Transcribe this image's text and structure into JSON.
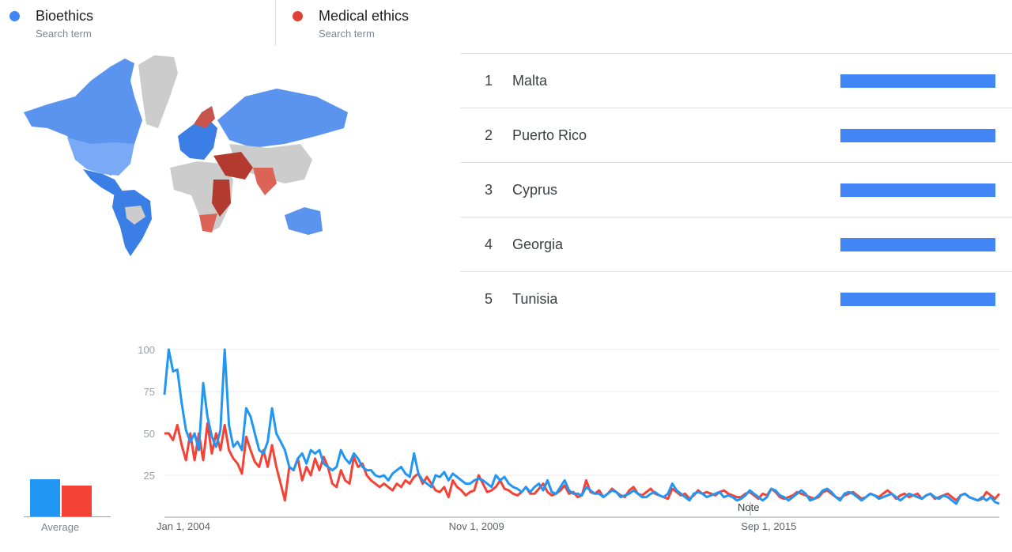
{
  "legend": [
    {
      "name": "Bioethics",
      "sub": "Search term",
      "color": "#4285f4"
    },
    {
      "name": "Medical ethics",
      "sub": "Search term",
      "color": "#db4437"
    }
  ],
  "ranking": [
    {
      "rank": "1",
      "country": "Malta",
      "value": 100
    },
    {
      "rank": "2",
      "country": "Puerto Rico",
      "value": 100
    },
    {
      "rank": "3",
      "country": "Cyprus",
      "value": 100
    },
    {
      "rank": "4",
      "country": "Georgia",
      "value": 100
    },
    {
      "rank": "5",
      "country": "Tunisia",
      "value": 100
    }
  ],
  "average": {
    "label": "Average",
    "values": [
      {
        "series": "Bioethics",
        "value": 24
      },
      {
        "series": "Medical ethics",
        "value": 20
      }
    ]
  },
  "note_label": "Note",
  "chart_data": {
    "type": "line",
    "x_tick_labels": [
      "Jan 1, 2004",
      "Nov 1, 2009",
      "Sep 1, 2015"
    ],
    "y_ticks": [
      25,
      50,
      75,
      100
    ],
    "ylim": [
      0,
      100
    ],
    "x_range": [
      "2004-01",
      "2020-09"
    ],
    "grid": true,
    "colors": [
      "#2196f3",
      "#f44336"
    ],
    "series": [
      {
        "name": "Bioethics",
        "values": [
          73,
          100,
          87,
          88,
          68,
          52,
          45,
          50,
          40,
          80,
          60,
          48,
          42,
          52,
          100,
          55,
          42,
          45,
          40,
          65,
          60,
          50,
          40,
          38,
          45,
          65,
          50,
          45,
          40,
          30,
          28,
          35,
          38,
          32,
          40,
          38,
          40,
          32,
          30,
          28,
          30,
          40,
          35,
          32,
          38,
          35,
          30,
          28,
          28,
          25,
          24,
          25,
          22,
          26,
          28,
          30,
          26,
          24,
          38,
          26,
          22,
          20,
          18,
          25,
          24,
          27,
          22,
          26,
          24,
          22,
          20,
          20,
          22,
          23,
          22,
          20,
          18,
          25,
          22,
          24,
          20,
          18,
          17,
          15,
          18,
          15,
          18,
          20,
          16,
          22,
          15,
          14,
          18,
          22,
          16,
          14,
          14,
          13,
          18,
          16,
          14,
          14,
          12,
          14,
          16,
          15,
          12,
          13,
          14,
          16,
          14,
          12,
          12,
          14,
          15,
          13,
          12,
          14,
          20,
          16,
          14,
          12,
          10,
          14,
          15,
          14,
          12,
          13,
          14,
          15,
          12,
          13,
          12,
          10,
          11,
          13,
          16,
          14,
          12,
          10,
          12,
          17,
          16,
          13,
          12,
          10,
          12,
          14,
          16,
          14,
          10,
          11,
          13,
          16,
          17,
          15,
          12,
          10,
          14,
          15,
          14,
          12,
          10,
          12,
          14,
          13,
          11,
          12,
          13,
          14,
          12,
          10,
          12,
          14,
          13,
          12,
          11,
          13,
          14,
          12,
          11,
          13,
          12,
          10,
          8,
          13,
          14,
          12,
          11,
          10,
          12,
          10,
          12,
          9,
          8
        ]
      },
      {
        "name": "Medical ethics",
        "values": [
          50,
          50,
          46,
          55,
          43,
          34,
          50,
          34,
          50,
          34,
          56,
          38,
          50,
          40,
          55,
          40,
          35,
          32,
          26,
          48,
          40,
          33,
          30,
          40,
          30,
          43,
          30,
          20,
          10,
          30,
          28,
          35,
          22,
          30,
          25,
          35,
          28,
          36,
          30,
          20,
          18,
          28,
          22,
          20,
          36,
          30,
          32,
          25,
          22,
          20,
          18,
          20,
          18,
          16,
          20,
          18,
          22,
          20,
          24,
          26,
          20,
          24,
          20,
          16,
          15,
          18,
          12,
          22,
          18,
          16,
          13,
          15,
          16,
          25,
          20,
          15,
          16,
          18,
          22,
          17,
          16,
          14,
          13,
          15,
          18,
          14,
          14,
          17,
          20,
          15,
          13,
          14,
          16,
          19,
          14,
          15,
          12,
          13,
          22,
          15,
          14,
          16,
          12,
          14,
          17,
          15,
          13,
          12,
          16,
          18,
          14,
          13,
          15,
          17,
          14,
          13,
          12,
          11,
          17,
          15,
          13,
          14,
          11,
          13,
          16,
          14,
          15,
          14,
          13,
          15,
          16,
          14,
          13,
          12,
          12,
          14,
          15,
          13,
          11,
          14,
          13,
          17,
          15,
          12,
          11,
          12,
          13,
          15,
          14,
          13,
          12,
          11,
          12,
          15,
          16,
          14,
          12,
          11,
          13,
          14,
          15,
          13,
          11,
          12,
          14,
          13,
          12,
          14,
          16,
          14,
          11,
          13,
          14,
          12,
          13,
          14,
          11,
          13,
          14,
          11,
          12,
          13,
          14,
          12,
          10,
          13,
          14,
          12,
          11,
          10,
          11,
          15,
          13,
          11,
          14
        ]
      }
    ]
  }
}
